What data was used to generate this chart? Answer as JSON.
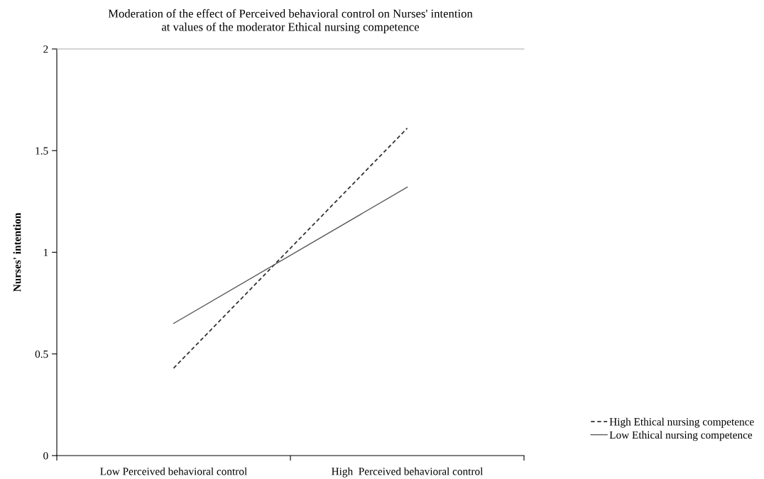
{
  "chart_data": {
    "type": "line",
    "title": "Moderation of the effect of Perceived behavioral control on Nurses' intention\nat values of the moderator Ethical nursing competence",
    "ylabel": "Nurses' intention",
    "categories": [
      "Low Perceived behavioral control",
      "High  Perceived behavioral control"
    ],
    "series": [
      {
        "name": "High Ethical nursing competence",
        "color": "#333333",
        "line_style": "dashed",
        "values": [
          0.43,
          1.61
        ]
      },
      {
        "name": "Low Ethical nursing competence",
        "color": "#5a5a5a",
        "line_style": "solid",
        "values": [
          0.65,
          1.32
        ]
      }
    ],
    "ylim": [
      0,
      2
    ],
    "yticks": [
      0,
      0.5,
      1,
      1.5,
      2
    ],
    "grid": false,
    "legend": "bottom right",
    "marker": "none"
  }
}
